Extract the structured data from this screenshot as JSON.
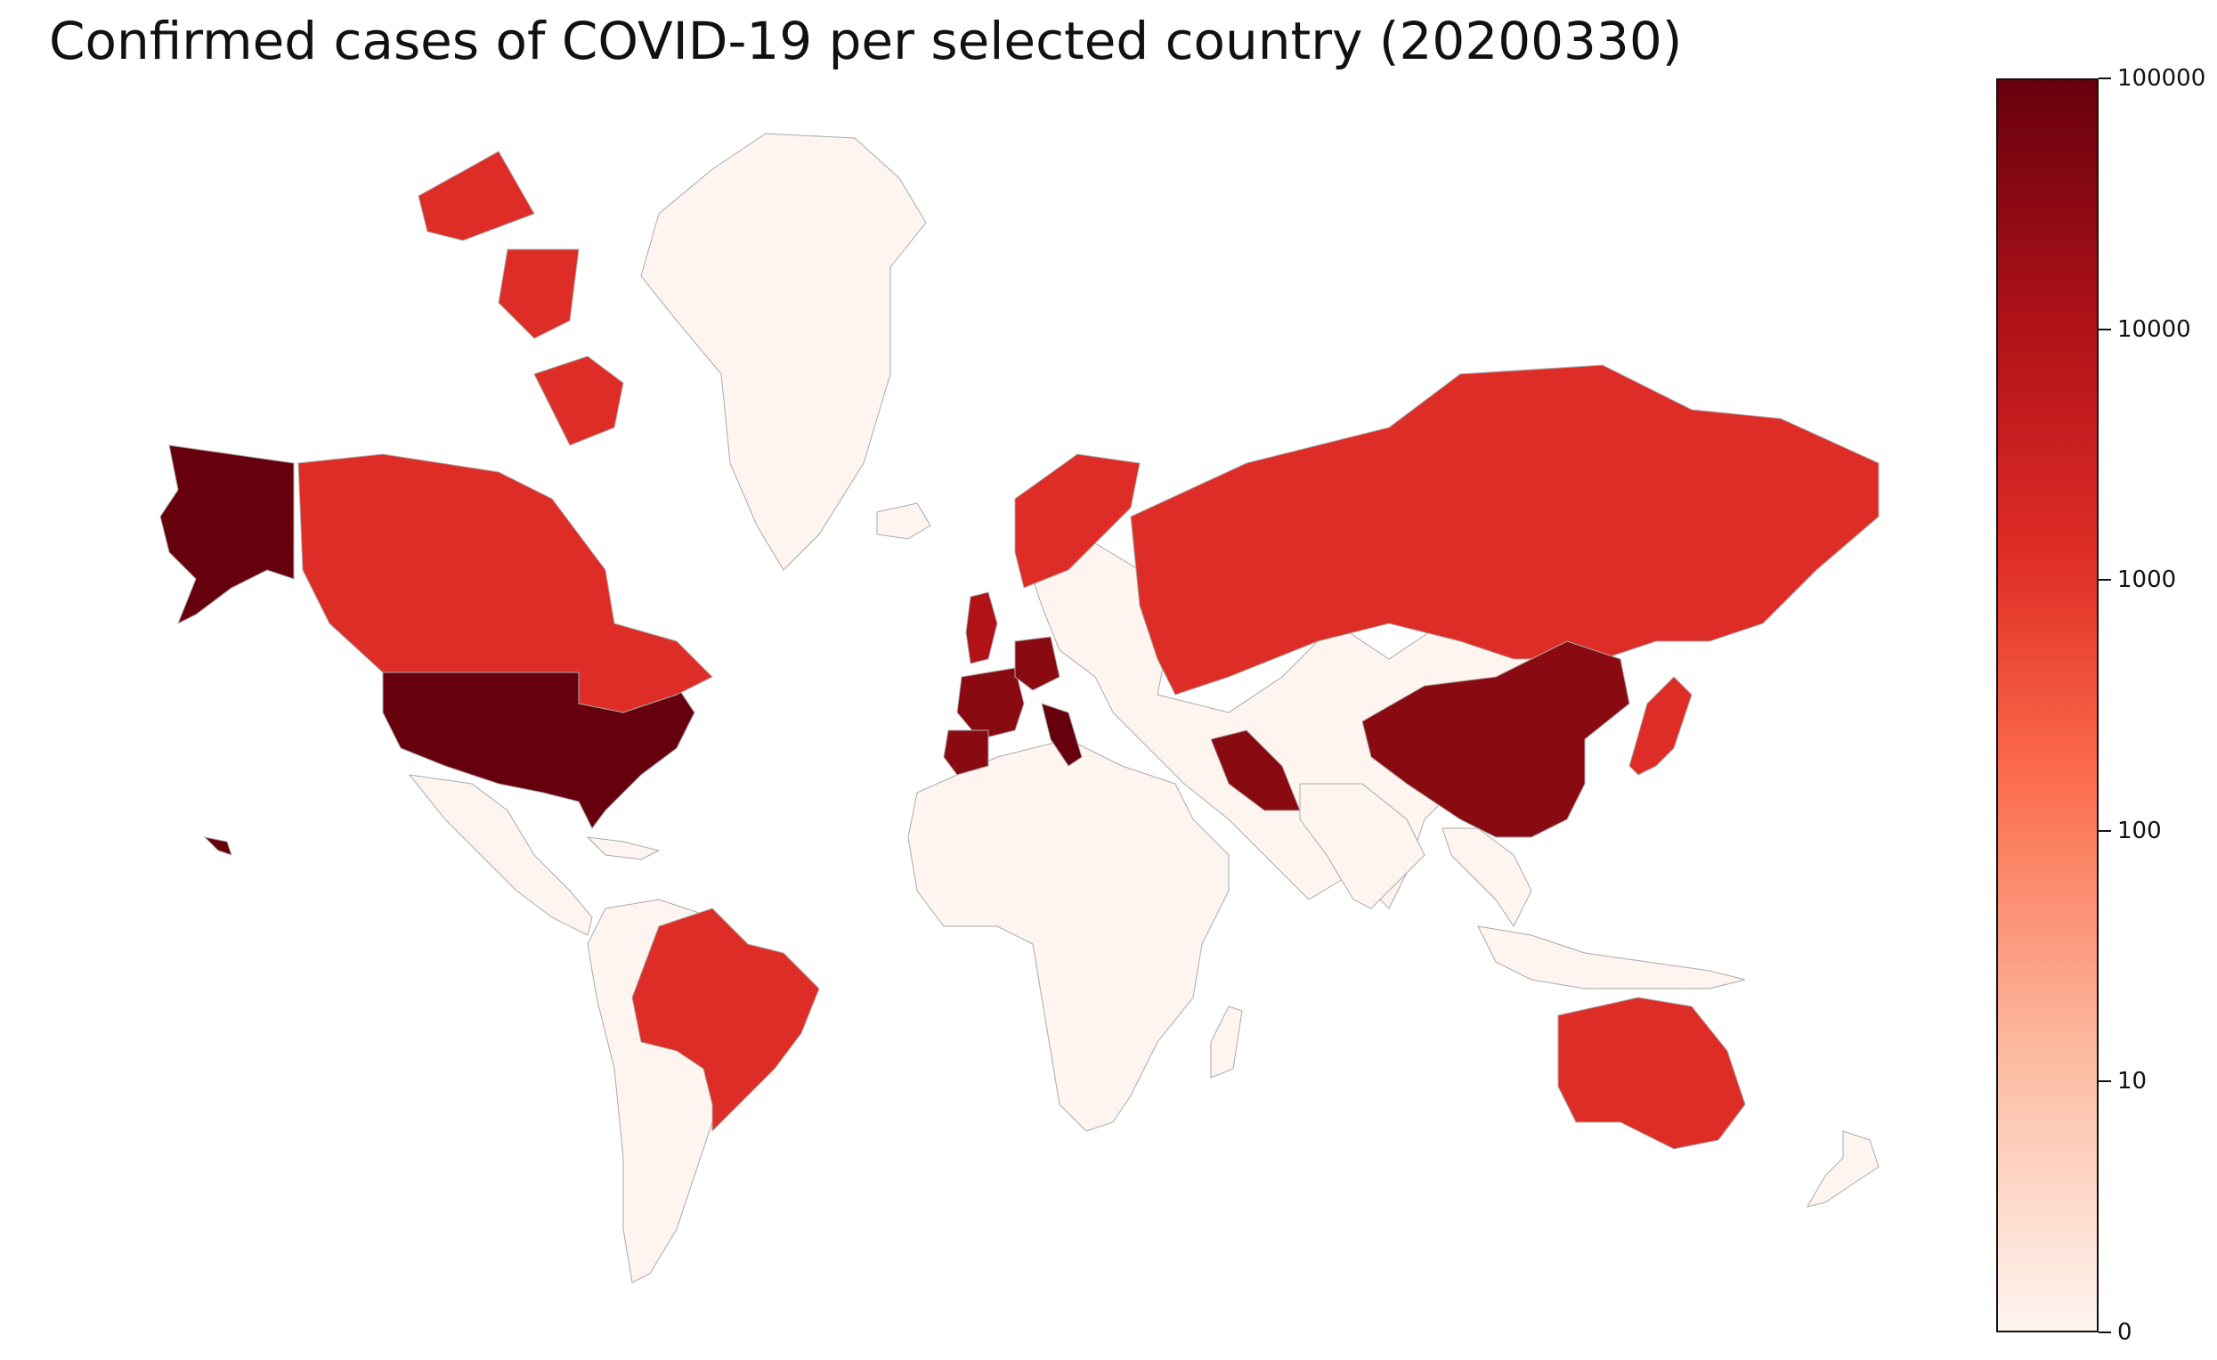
{
  "title": "Confirmed cases of COVID-19 per selected country (20200330)",
  "colors": {
    "none": "#fff5f0",
    "low_1k_10k": "#de2d26",
    "mid_10k_30k": "#b11218",
    "high_30k_100k": "#8a0a12",
    "top_100k": "#67000d",
    "border": "#aaaaaa"
  },
  "colorbar": {
    "scale": "log",
    "ticks": [
      "0",
      "10",
      "100",
      "1000",
      "10000",
      "100000"
    ]
  },
  "countries": [
    {
      "name": "United States",
      "level": "top_100k"
    },
    {
      "name": "Canada",
      "level": "low_1k_10k"
    },
    {
      "name": "Brazil",
      "level": "low_1k_10k"
    },
    {
      "name": "United Kingdom",
      "level": "mid_10k_30k"
    },
    {
      "name": "France",
      "level": "high_30k_100k"
    },
    {
      "name": "Germany",
      "level": "high_30k_100k"
    },
    {
      "name": "Italy",
      "level": "top_100k"
    },
    {
      "name": "Spain",
      "level": "high_30k_100k"
    },
    {
      "name": "Norway",
      "level": "low_1k_10k"
    },
    {
      "name": "Russia",
      "level": "low_1k_10k"
    },
    {
      "name": "Iran",
      "level": "high_30k_100k"
    },
    {
      "name": "China",
      "level": "high_30k_100k"
    },
    {
      "name": "Japan",
      "level": "low_1k_10k"
    },
    {
      "name": "Australia",
      "level": "low_1k_10k"
    }
  ]
}
